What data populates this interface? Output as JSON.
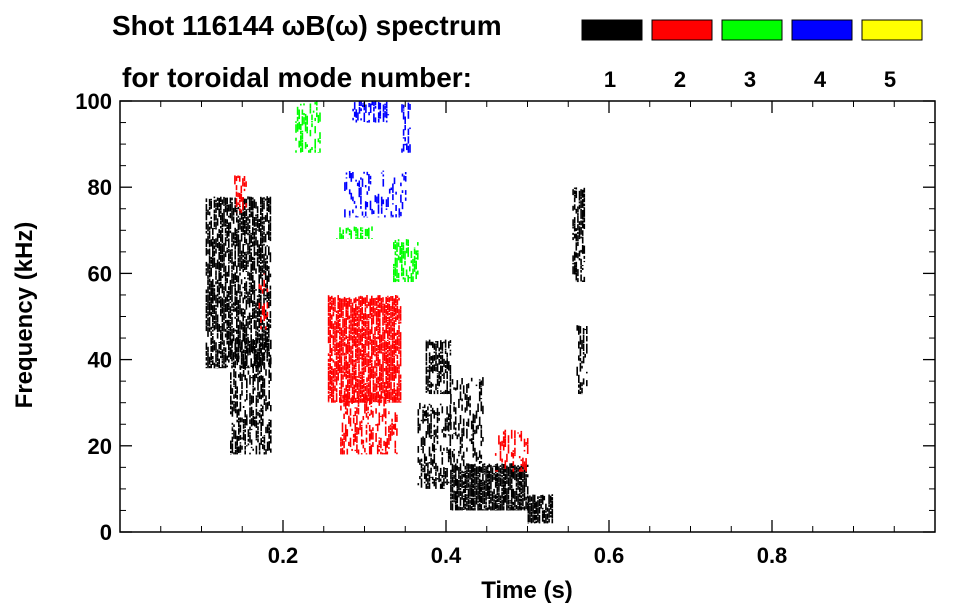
{
  "chart_data": {
    "type": "heatmap",
    "title_line1": "Shot 116144 ωB(ω) spectrum",
    "title_line2": "for toroidal mode number:",
    "xlabel": "Time (s)",
    "ylabel": "Frequency (kHz)",
    "xlim": [
      0.0,
      1.0
    ],
    "ylim": [
      0,
      100
    ],
    "xticks": [
      0.2,
      0.4,
      0.6,
      0.8
    ],
    "xtick_labels": [
      "0.2",
      "0.4",
      "0.6",
      "0.8"
    ],
    "yticks": [
      0,
      20,
      40,
      60,
      80,
      100
    ],
    "ytick_labels": [
      "0",
      "20",
      "40",
      "60",
      "80",
      "100"
    ],
    "legend": [
      {
        "label": "1",
        "color": "#000000"
      },
      {
        "label": "2",
        "color": "#ff0000"
      },
      {
        "label": "3",
        "color": "#00ff00"
      },
      {
        "label": "4",
        "color": "#0000ff"
      },
      {
        "label": "5",
        "color": "#ffff00"
      }
    ],
    "regions": [
      {
        "mode": 1,
        "t": [
          0.105,
          0.185
        ],
        "f": [
          38,
          78
        ],
        "density": 0.75
      },
      {
        "mode": 1,
        "t": [
          0.135,
          0.185
        ],
        "f": [
          18,
          45
        ],
        "density": 0.55
      },
      {
        "mode": 1,
        "t": [
          0.375,
          0.405
        ],
        "f": [
          32,
          45
        ],
        "density": 0.7
      },
      {
        "mode": 1,
        "t": [
          0.365,
          0.405
        ],
        "f": [
          10,
          30
        ],
        "density": 0.5
      },
      {
        "mode": 1,
        "t": [
          0.405,
          0.5
        ],
        "f": [
          5,
          16
        ],
        "density": 0.9
      },
      {
        "mode": 1,
        "t": [
          0.5,
          0.53
        ],
        "f": [
          2,
          9
        ],
        "density": 0.8
      },
      {
        "mode": 1,
        "t": [
          0.405,
          0.445
        ],
        "f": [
          14,
          36
        ],
        "density": 0.35
      },
      {
        "mode": 1,
        "t": [
          0.555,
          0.57
        ],
        "f": [
          58,
          80
        ],
        "density": 0.65
      },
      {
        "mode": 1,
        "t": [
          0.56,
          0.572
        ],
        "f": [
          32,
          48
        ],
        "density": 0.5
      },
      {
        "mode": 2,
        "t": [
          0.255,
          0.345
        ],
        "f": [
          30,
          55
        ],
        "density": 0.85
      },
      {
        "mode": 2,
        "t": [
          0.27,
          0.34
        ],
        "f": [
          18,
          32
        ],
        "density": 0.45
      },
      {
        "mode": 2,
        "t": [
          0.14,
          0.155
        ],
        "f": [
          74,
          83
        ],
        "density": 0.6
      },
      {
        "mode": 2,
        "t": [
          0.17,
          0.18
        ],
        "f": [
          47,
          60
        ],
        "density": 0.4
      },
      {
        "mode": 2,
        "t": [
          0.46,
          0.5
        ],
        "f": [
          14,
          24
        ],
        "density": 0.4
      },
      {
        "mode": 3,
        "t": [
          0.215,
          0.245
        ],
        "f": [
          88,
          100
        ],
        "density": 0.55
      },
      {
        "mode": 3,
        "t": [
          0.265,
          0.31
        ],
        "f": [
          68,
          71
        ],
        "density": 0.7
      },
      {
        "mode": 3,
        "t": [
          0.335,
          0.365
        ],
        "f": [
          58,
          68
        ],
        "density": 0.6
      },
      {
        "mode": 4,
        "t": [
          0.285,
          0.33
        ],
        "f": [
          95,
          100
        ],
        "density": 0.5
      },
      {
        "mode": 4,
        "t": [
          0.275,
          0.35
        ],
        "f": [
          73,
          84
        ],
        "density": 0.35
      },
      {
        "mode": 4,
        "t": [
          0.345,
          0.355
        ],
        "f": [
          88,
          100
        ],
        "density": 0.5
      }
    ]
  }
}
